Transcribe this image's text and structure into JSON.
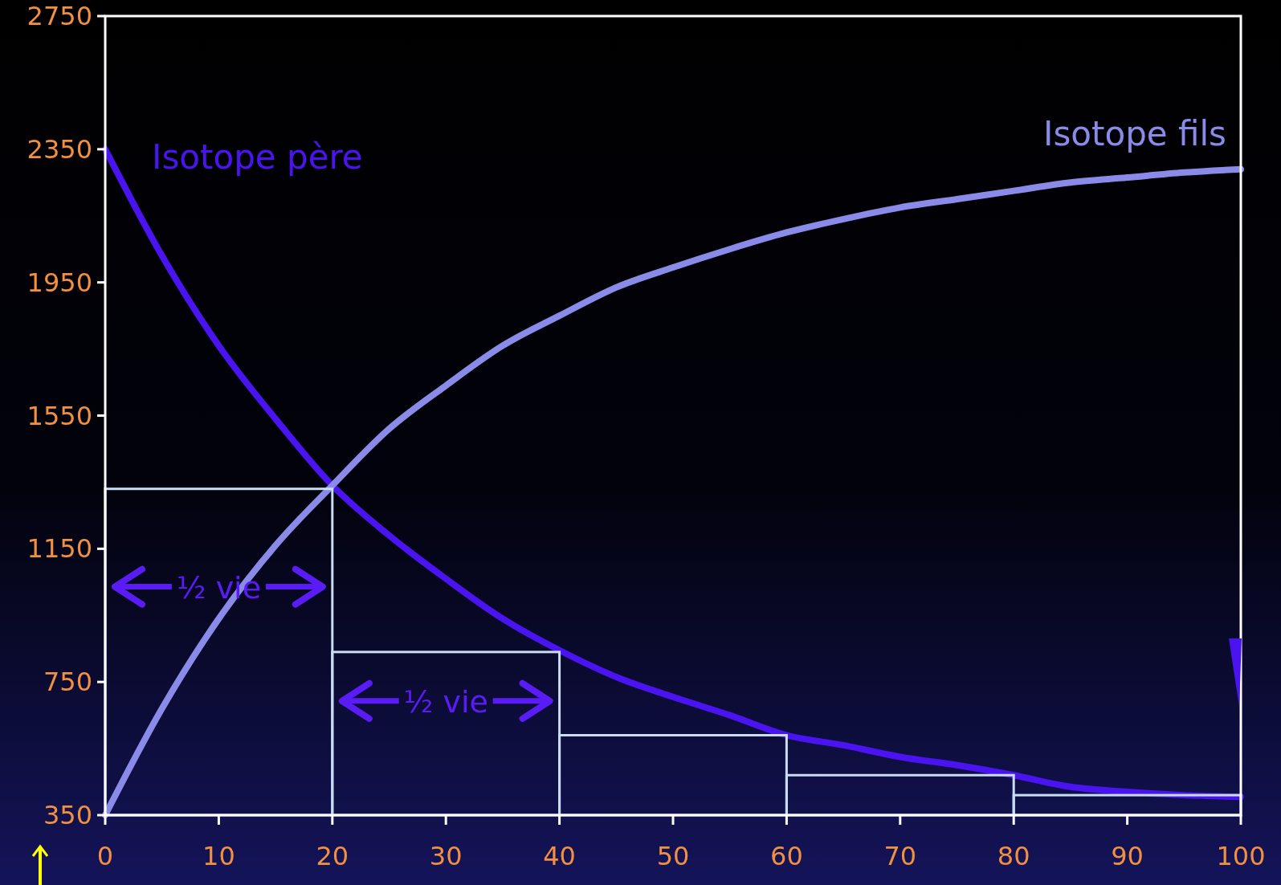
{
  "chart_data": {
    "type": "line",
    "xlim": [
      0,
      100
    ],
    "xticks": [
      0,
      10,
      20,
      30,
      40,
      50,
      60,
      70,
      80,
      90,
      100
    ],
    "ylim": [
      350,
      2750
    ],
    "yticks": [
      350,
      750,
      1150,
      1550,
      1950,
      2350,
      2750
    ],
    "series": [
      {
        "name": "Isotope père",
        "color": "#4a14f0",
        "x": [
          0,
          5,
          10,
          15,
          20,
          25,
          30,
          35,
          40,
          45,
          50,
          55,
          60,
          65,
          70,
          75,
          80,
          85,
          90,
          95,
          100
        ],
        "values": [
          2350,
          2030,
          1760,
          1540,
          1340,
          1190,
          1060,
          940,
          845,
          765,
          705,
          650,
          590,
          560,
          525,
          500,
          470,
          435,
          420,
          410,
          405
        ]
      },
      {
        "name": "Isotope fils",
        "color": "#8a8ae8",
        "x": [
          0,
          5,
          10,
          15,
          20,
          25,
          30,
          35,
          40,
          45,
          50,
          55,
          60,
          65,
          70,
          75,
          80,
          85,
          90,
          95,
          100
        ],
        "values": [
          350,
          670,
          940,
          1160,
          1340,
          1510,
          1640,
          1760,
          1850,
          1935,
          1995,
          2050,
          2100,
          2140,
          2175,
          2200,
          2225,
          2250,
          2265,
          2280,
          2290
        ]
      },
      {
        "type": "histogram",
        "color": "#c8dcf2",
        "bins": [
          0,
          20,
          40,
          60,
          80,
          100
        ],
        "values": [
          1330,
          840,
          590,
          470,
          410
        ]
      }
    ],
    "annotations": [
      "½ vie",
      "½ vie"
    ]
  }
}
